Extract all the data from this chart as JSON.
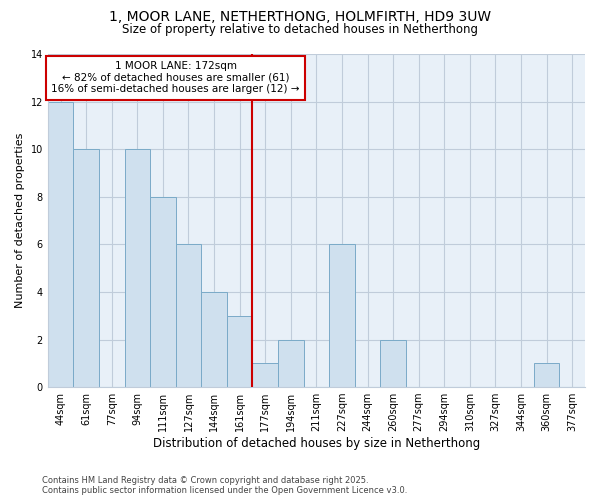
{
  "title1": "1, MOOR LANE, NETHERTHONG, HOLMFIRTH, HD9 3UW",
  "title2": "Size of property relative to detached houses in Netherthong",
  "xlabel": "Distribution of detached houses by size in Netherthong",
  "ylabel": "Number of detached properties",
  "categories": [
    "44sqm",
    "61sqm",
    "77sqm",
    "94sqm",
    "111sqm",
    "127sqm",
    "144sqm",
    "161sqm",
    "177sqm",
    "194sqm",
    "211sqm",
    "227sqm",
    "244sqm",
    "260sqm",
    "277sqm",
    "294sqm",
    "310sqm",
    "327sqm",
    "344sqm",
    "360sqm",
    "377sqm"
  ],
  "values": [
    12,
    10,
    0,
    10,
    8,
    6,
    4,
    3,
    1,
    2,
    0,
    6,
    0,
    2,
    0,
    0,
    0,
    0,
    0,
    1,
    0
  ],
  "bar_color": "#cfe0ee",
  "bar_edge_color": "#7aaac8",
  "vline_bar_index": 8,
  "vline_color": "#cc0000",
  "annotation_text": "1 MOOR LANE: 172sqm\n← 82% of detached houses are smaller (61)\n16% of semi-detached houses are larger (12) →",
  "annotation_box_color": "white",
  "annotation_box_edge_color": "#cc0000",
  "ylim": [
    0,
    14
  ],
  "yticks": [
    0,
    2,
    4,
    6,
    8,
    10,
    12,
    14
  ],
  "bg_color": "#ffffff",
  "plot_bg_color": "#e8f0f8",
  "grid_color": "#c0ccda",
  "footer_text": "Contains HM Land Registry data © Crown copyright and database right 2025.\nContains public sector information licensed under the Open Government Licence v3.0.",
  "title1_fontsize": 10,
  "title2_fontsize": 8.5,
  "xlabel_fontsize": 8.5,
  "ylabel_fontsize": 8,
  "tick_fontsize": 7,
  "annotation_fontsize": 7.5,
  "footer_fontsize": 6
}
